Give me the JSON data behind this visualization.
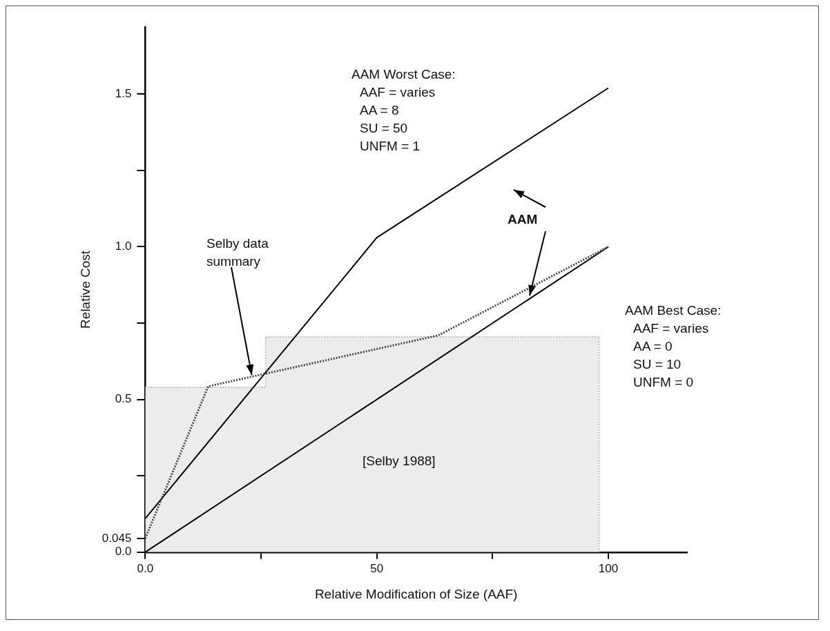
{
  "chart_data": {
    "type": "line",
    "xlabel": "Relative Modification of Size (AAF)",
    "ylabel": "Relative Cost",
    "xlim": [
      0,
      117
    ],
    "ylim": [
      0,
      1.72
    ],
    "xticks": [
      {
        "value": 0,
        "label": "0.0"
      },
      {
        "value": 25,
        "label": null
      },
      50,
      {
        "value": 75,
        "label": null
      },
      100
    ],
    "yticks": [
      {
        "value": 0,
        "label": "0.0"
      },
      0.045,
      {
        "value": 0.25,
        "label": null
      },
      0.5,
      {
        "value": 0.75,
        "label": null
      },
      {
        "value": 1,
        "label": "1.0"
      },
      {
        "value": 1.25,
        "label": null
      },
      1.5
    ],
    "legend": false,
    "series": [
      {
        "type": "area",
        "color": "#bdbdbd",
        "line_style": "dotted",
        "x": [
          0,
          26,
          26,
          98,
          98
        ],
        "values": [
          0.54,
          0.54,
          0.705,
          0.705,
          0
        ]
      },
      {
        "type": "line",
        "color": "#000000",
        "line_style": "solid",
        "x": [
          0,
          50,
          100
        ],
        "values": [
          0.11,
          1.03,
          1.52
        ]
      },
      {
        "type": "line",
        "color": "#000000",
        "line_style": "solid",
        "x": [
          0,
          100
        ],
        "values": [
          0,
          1.0
        ]
      },
      {
        "type": "line",
        "color": "#444444",
        "line_style": "dotted",
        "x": [
          0,
          13.6,
          63.3,
          100
        ],
        "values": [
          0.045,
          0.543,
          0.71,
          1.0
        ]
      }
    ],
    "annotations": [
      "AAM Worst Case:\nAAF = varies\nAA = 8\nSU = 50\nUNFM = 1",
      {
        "text": "AAM",
        "x": 83,
        "y": 0.84
      },
      {
        "text": "Selby data\nsummary",
        "x": 23,
        "y": 0.58
      },
      "AAM Best Case:\nAAF = varies\nAA = 0\nSU = 10\nUNFM = 0",
      "[Selby 1988]"
    ]
  }
}
